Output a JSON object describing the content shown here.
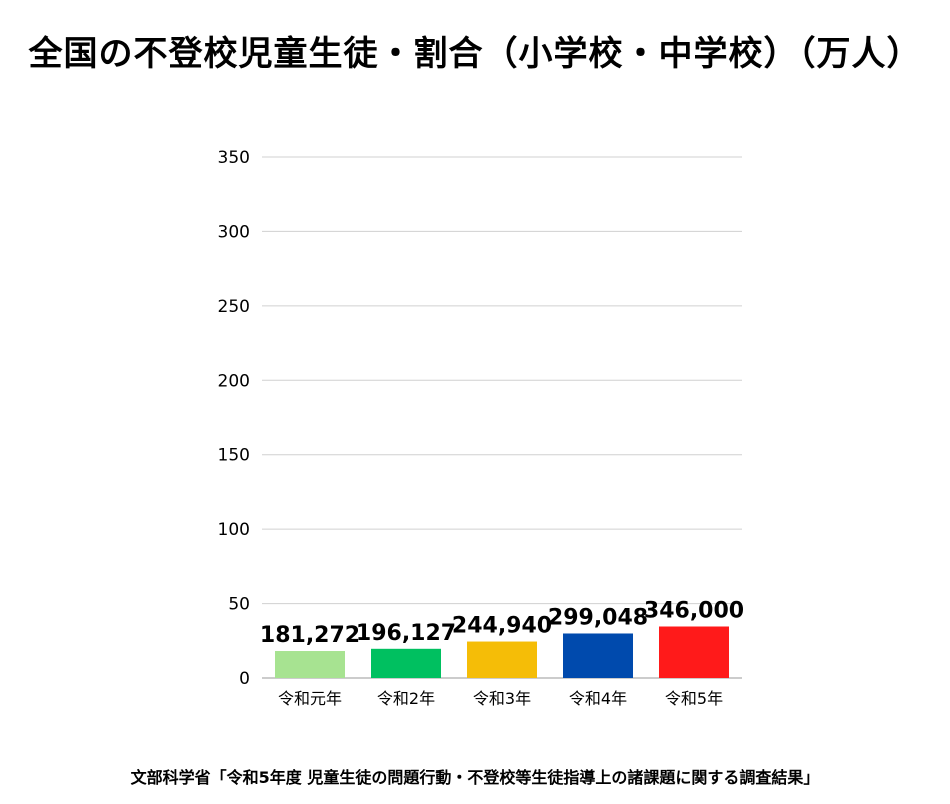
{
  "chart_data": {
    "type": "bar",
    "title": "全国の不登校児童生徒・割合（小学校・中学校）（万人）",
    "categories": [
      "令和元年",
      "令和2年",
      "令和3年",
      "令和4年",
      "令和5年"
    ],
    "values": [
      18.1272,
      19.6127,
      24.494,
      29.9048,
      34.6
    ],
    "data_labels": [
      "181,272",
      "196,127",
      "244,940",
      "299,048",
      "346,000"
    ],
    "colors": [
      "#a7e391",
      "#00c060",
      "#f5bd07",
      "#004aad",
      "#ff1a1a"
    ],
    "ylim": [
      0,
      350
    ],
    "yticks": [
      "0",
      "50",
      "100",
      "150",
      "200",
      "250",
      "300",
      "350"
    ],
    "grid": true,
    "source": "文部科学省「令和5年度 児童生徒の問題行動・不登校等生徒指導上の諸課題に関する調査結果」"
  }
}
